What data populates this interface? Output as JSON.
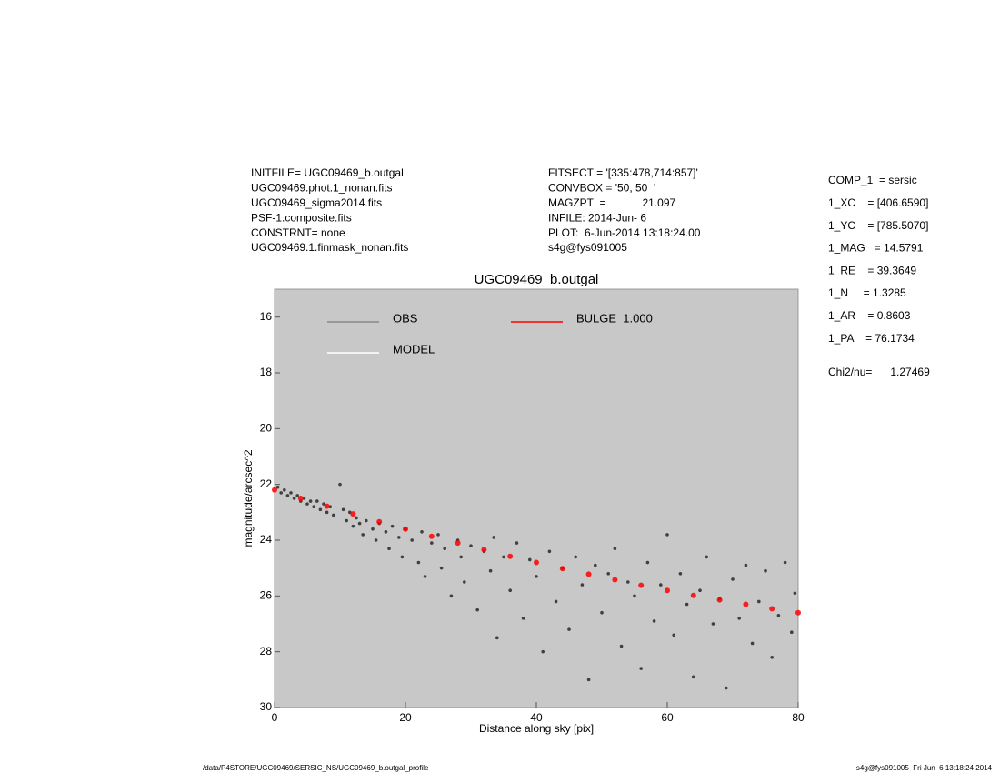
{
  "header": {
    "left": [
      "INITFILE= UGC09469_b.outgal",
      "UGC09469.phot.1_nonan.fits",
      "UGC09469_sigma2014.fits",
      "PSF-1.composite.fits",
      "CONSTRNT= none",
      "UGC09469.1.finmask_nonan.fits"
    ],
    "middle": [
      "FITSECT = '[335:478,714:857]'",
      "CONVBOX = '50, 50  '",
      "MAGZPT  =            21.097",
      "INFILE: 2014-Jun- 6",
      "PLOT:  6-Jun-2014 13:18:24.00",
      "s4g@fys091005"
    ],
    "right": [
      "COMP_1  = sersic",
      "1_XC    = [406.6590]",
      "1_YC    = [785.5070]",
      "1_MAG   = 14.5791",
      "1_RE    = 39.3649",
      "1_N     = 1.3285",
      "1_AR    = 0.8603",
      "1_PA    = 76.1734"
    ],
    "chi2": "Chi2/nu=      1.27469"
  },
  "footer": {
    "left": "/data/P4STORE/UGC09469/SERSIC_NS/UGC09469_b.outgal_profile",
    "right": "s4g@fys091005  Fri Jun  6 13:18:24 2014"
  },
  "chart_data": {
    "type": "scatter",
    "title": "UGC09469_b.outgal",
    "x_label": "Distance along sky [pix]",
    "y_label": "magnitude/arcsec^2",
    "xlim": [
      0,
      80
    ],
    "ylim": [
      30,
      15
    ],
    "xticks": [
      0,
      20,
      40,
      60,
      80
    ],
    "yticks": [
      16,
      18,
      20,
      22,
      24,
      26,
      28,
      30
    ],
    "series": [
      {
        "name": "OBS",
        "color": "#404040",
        "x": [
          0.5,
          1,
          1.5,
          2,
          2.5,
          3,
          3.5,
          4,
          4.5,
          5,
          5.5,
          6,
          6.5,
          7,
          7.5,
          8,
          8.5,
          9,
          10,
          10.5,
          11,
          11.5,
          12,
          12.5,
          13,
          13.5,
          14,
          15,
          15.5,
          16,
          17,
          17.5,
          18,
          19,
          19.5,
          20,
          21,
          22,
          22.5,
          23,
          24,
          25,
          25.5,
          26,
          27,
          28,
          28.5,
          29,
          30,
          31,
          32,
          33,
          33.5,
          34,
          35,
          36,
          37,
          38,
          39,
          40,
          41,
          42,
          43,
          44,
          45,
          46,
          47,
          48,
          49,
          50,
          51,
          52,
          53,
          54,
          55,
          56,
          57,
          58,
          59,
          60,
          61,
          62,
          63,
          64,
          65,
          66,
          67,
          68,
          69,
          70,
          71,
          72,
          73,
          74,
          75,
          76,
          77,
          78,
          79,
          79.5
        ],
        "values": [
          22.1,
          22.3,
          22.2,
          22.4,
          22.3,
          22.5,
          22.4,
          22.6,
          22.5,
          22.7,
          22.6,
          22.8,
          22.6,
          22.9,
          22.7,
          23.0,
          22.8,
          23.1,
          22.0,
          22.9,
          23.3,
          23.0,
          23.5,
          23.2,
          23.4,
          23.8,
          23.3,
          23.6,
          24.0,
          23.4,
          23.7,
          24.3,
          23.5,
          23.9,
          24.6,
          23.6,
          24.0,
          24.8,
          23.7,
          25.3,
          24.1,
          23.8,
          25.0,
          24.3,
          26.0,
          24.0,
          24.6,
          25.5,
          24.2,
          26.5,
          24.4,
          25.1,
          23.9,
          27.5,
          24.6,
          25.8,
          24.1,
          26.8,
          24.7,
          25.3,
          28.0,
          24.4,
          26.2,
          25.0,
          27.2,
          24.6,
          25.6,
          29.0,
          24.9,
          26.6,
          25.2,
          24.3,
          27.8,
          25.5,
          26.0,
          28.6,
          24.8,
          26.9,
          25.6,
          23.8,
          27.4,
          25.2,
          26.3,
          28.9,
          25.8,
          24.6,
          27.0,
          26.1,
          29.3,
          25.4,
          26.8,
          24.9,
          27.7,
          26.2,
          25.1,
          28.2,
          26.7,
          24.8,
          27.3,
          25.9
        ]
      },
      {
        "name": "BULGE  1.000",
        "color": "#ff0000",
        "x": [
          0,
          4,
          8,
          12,
          16,
          20,
          24,
          28,
          32,
          36,
          40,
          44,
          48,
          52,
          56,
          60,
          64,
          68,
          72,
          76,
          80
        ],
        "values": [
          22.2,
          22.5,
          22.78,
          23.06,
          23.34,
          23.6,
          23.86,
          24.1,
          24.34,
          24.58,
          24.8,
          25.02,
          25.22,
          25.42,
          25.62,
          25.8,
          25.98,
          26.14,
          26.3,
          26.46,
          26.6
        ]
      },
      {
        "name": "MODEL",
        "color": "#ffffff",
        "x": [],
        "values": []
      }
    ]
  }
}
